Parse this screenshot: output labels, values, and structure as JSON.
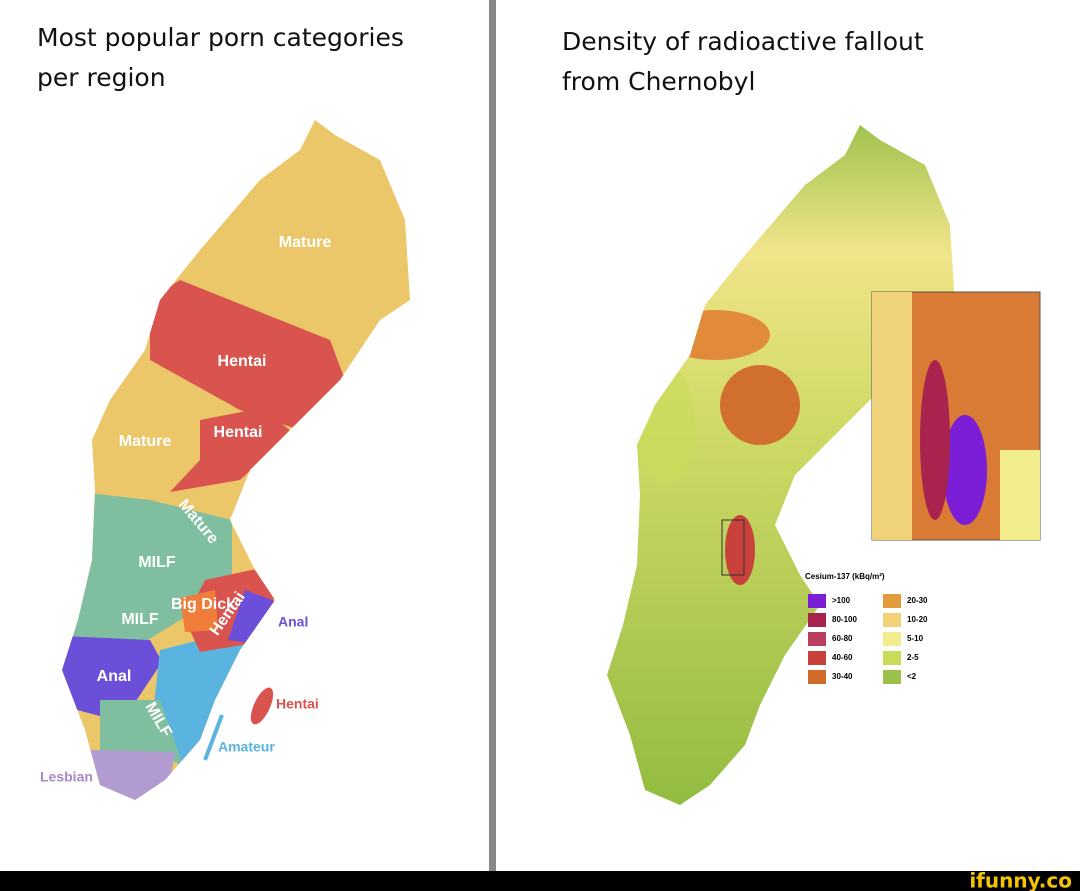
{
  "left_panel": {
    "title_lines": [
      "Most popular porn categories",
      "per region"
    ],
    "labels": [
      "Mature",
      "Hentai",
      "Mature",
      "Hentai",
      "Mature",
      "MILF",
      "MILF",
      "Big Dick",
      "Hentai",
      "Anal",
      "Anal",
      "MILF",
      "Hentai",
      "Amateur",
      "Lesbian"
    ]
  },
  "right_panel": {
    "title_lines": [
      "Density of radioactive fallout",
      "from Chernobyl"
    ],
    "legend_title": "Cesium-137 (kBq/m²)",
    "legend": [
      {
        "label": ">100",
        "color": "#7a1fd6"
      },
      {
        "label": "80-100",
        "color": "#a8244e"
      },
      {
        "label": "60-80",
        "color": "#b8405e"
      },
      {
        "label": "40-60",
        "color": "#c8413a"
      },
      {
        "label": "30-40",
        "color": "#cf6a2a"
      },
      {
        "label": "20-30",
        "color": "#e29a3a"
      },
      {
        "label": "10-20",
        "color": "#f3d27a"
      },
      {
        "label": "5-10",
        "color": "#f2ee8e"
      },
      {
        "label": "2-5",
        "color": "#c9dc5a"
      },
      {
        "label": "<2",
        "color": "#9cc14a"
      }
    ]
  },
  "footer": {
    "watermark": "ifunny.co"
  }
}
